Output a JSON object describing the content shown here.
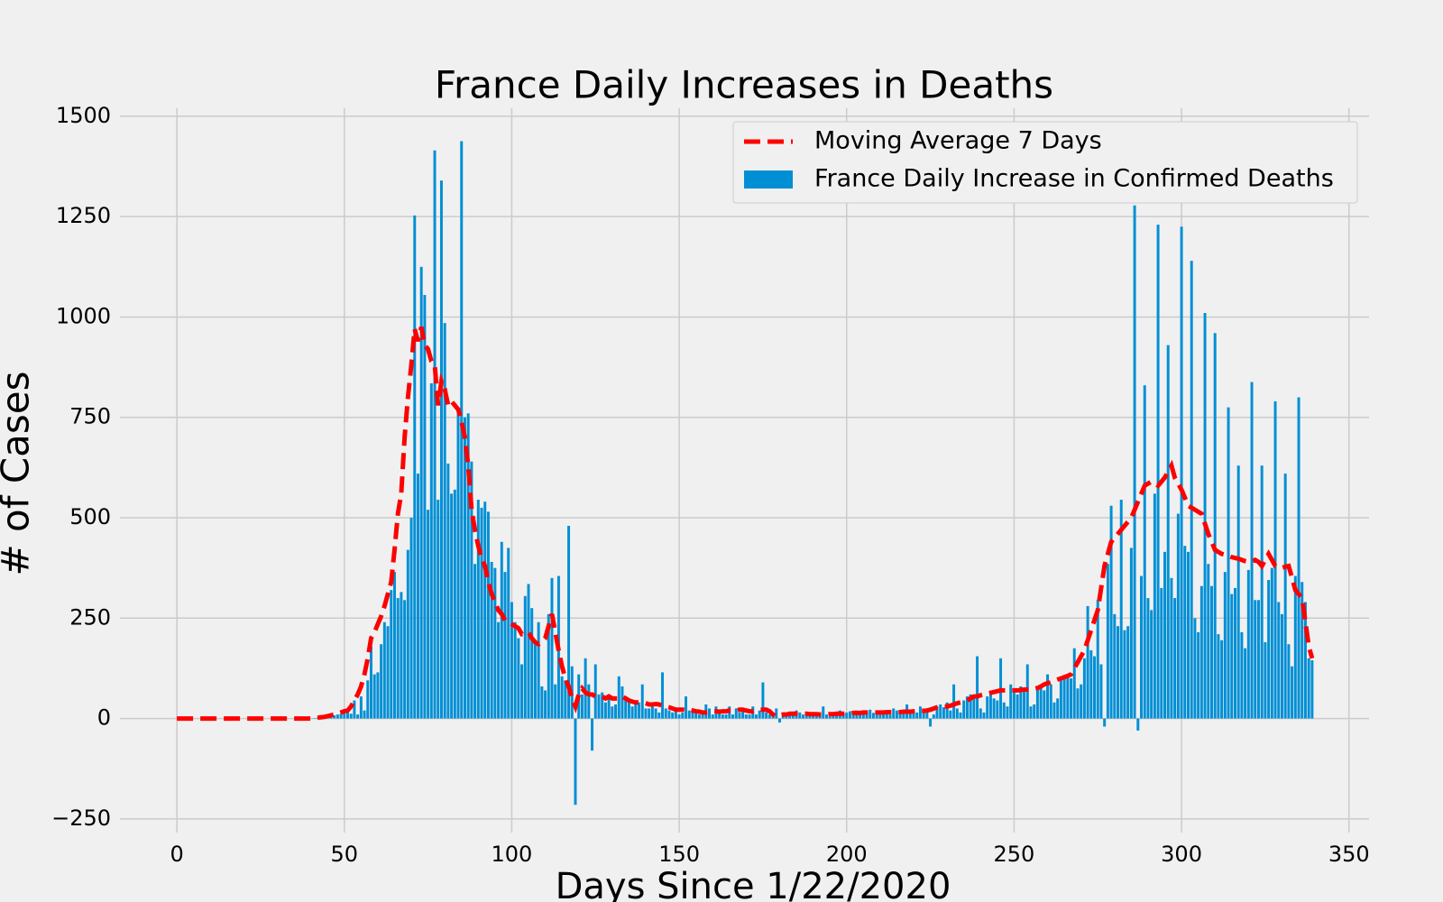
{
  "chart_data": {
    "type": "bar",
    "title": "France Daily Increases in Deaths",
    "x_label": "Days Since 1/22/2020",
    "y_label": "# of Cases",
    "legend": "upper right",
    "grid": true,
    "xlim": [
      -17,
      356
    ],
    "ylim": [
      -284,
      1520
    ],
    "xticks": [
      0,
      50,
      100,
      150,
      200,
      250,
      300,
      350
    ],
    "yticks": [
      {
        "value": -250,
        "label": "−250"
      },
      0,
      250,
      500,
      750,
      1000,
      1250,
      1500
    ],
    "x": [
      0,
      1,
      2,
      3,
      4,
      5,
      6,
      7,
      8,
      9,
      10,
      11,
      12,
      13,
      14,
      15,
      16,
      17,
      18,
      19,
      20,
      21,
      22,
      23,
      24,
      25,
      26,
      27,
      28,
      29,
      30,
      31,
      32,
      33,
      34,
      35,
      36,
      37,
      38,
      39,
      40,
      41,
      42,
      43,
      44,
      45,
      46,
      47,
      48,
      49,
      50,
      51,
      52,
      53,
      54,
      55,
      56,
      57,
      58,
      59,
      60,
      61,
      62,
      63,
      64,
      65,
      66,
      67,
      68,
      69,
      70,
      71,
      72,
      73,
      74,
      75,
      76,
      77,
      78,
      79,
      80,
      81,
      82,
      83,
      84,
      85,
      86,
      87,
      88,
      89,
      90,
      91,
      92,
      93,
      94,
      95,
      96,
      97,
      98,
      99,
      100,
      101,
      102,
      103,
      104,
      105,
      106,
      107,
      108,
      109,
      110,
      111,
      112,
      113,
      114,
      115,
      116,
      117,
      118,
      119,
      120,
      121,
      122,
      123,
      124,
      125,
      126,
      127,
      128,
      129,
      130,
      131,
      132,
      133,
      134,
      135,
      136,
      137,
      138,
      139,
      140,
      141,
      142,
      143,
      144,
      145,
      146,
      147,
      148,
      149,
      150,
      151,
      152,
      153,
      154,
      155,
      156,
      157,
      158,
      159,
      160,
      161,
      162,
      163,
      164,
      165,
      166,
      167,
      168,
      169,
      170,
      171,
      172,
      173,
      174,
      175,
      176,
      177,
      178,
      179,
      180,
      181,
      182,
      183,
      184,
      185,
      186,
      187,
      188,
      189,
      190,
      191,
      192,
      193,
      194,
      195,
      196,
      197,
      198,
      199,
      200,
      201,
      202,
      203,
      204,
      205,
      206,
      207,
      208,
      209,
      210,
      211,
      212,
      213,
      214,
      215,
      216,
      217,
      218,
      219,
      220,
      221,
      222,
      223,
      224,
      225,
      226,
      227,
      228,
      229,
      230,
      231,
      232,
      233,
      234,
      235,
      236,
      237,
      238,
      239,
      240,
      241,
      242,
      243,
      244,
      245,
      246,
      247,
      248,
      249,
      250,
      251,
      252,
      253,
      254,
      255,
      256,
      257,
      258,
      259,
      260,
      261,
      262,
      263,
      264,
      265,
      266,
      267,
      268,
      269,
      270,
      271,
      272,
      273,
      274,
      275,
      276,
      277,
      278,
      279,
      280,
      281,
      282,
      283,
      284,
      285,
      286,
      287,
      288,
      289,
      290,
      291,
      292,
      293,
      294,
      295,
      296,
      297,
      298,
      299,
      300,
      301,
      302,
      303,
      304,
      305,
      306,
      307,
      308,
      309,
      310,
      311,
      312,
      313,
      314,
      315,
      316,
      317,
      318,
      319,
      320,
      321,
      322,
      323,
      324,
      325,
      326,
      327,
      328,
      329,
      330,
      331,
      332,
      333,
      334,
      335,
      336,
      337,
      338,
      339
    ],
    "series": [
      {
        "name": "France Daily Increase in Confirmed Deaths",
        "type": "bar",
        "color": "#008fd5",
        "values": [
          0,
          0,
          0,
          0,
          0,
          0,
          0,
          0,
          0,
          0,
          0,
          0,
          0,
          0,
          0,
          0,
          0,
          0,
          0,
          0,
          0,
          0,
          0,
          0,
          0,
          0,
          0,
          0,
          0,
          0,
          0,
          0,
          0,
          0,
          0,
          0,
          0,
          0,
          0,
          0,
          0,
          1,
          2,
          3,
          5,
          4,
          6,
          8,
          10,
          12,
          15,
          20,
          12,
          45,
          10,
          55,
          20,
          95,
          180,
          110,
          115,
          185,
          240,
          230,
          320,
          365,
          300,
          315,
          295,
          420,
          500,
          1253,
          610,
          1125,
          1055,
          520,
          835,
          1415,
          545,
          1340,
          985,
          635,
          560,
          570,
          760,
          1438,
          750,
          760,
          640,
          385,
          545,
          525,
          540,
          515,
          390,
          375,
          240,
          440,
          365,
          425,
          290,
          240,
          200,
          135,
          305,
          335,
          275,
          190,
          240,
          80,
          70,
          260,
          350,
          85,
          355,
          105,
          95,
          480,
          130,
          -215,
          110,
          60,
          150,
          85,
          -80,
          135,
          60,
          65,
          40,
          60,
          30,
          35,
          105,
          80,
          45,
          45,
          30,
          40,
          40,
          85,
          25,
          25,
          30,
          25,
          15,
          115,
          25,
          20,
          15,
          20,
          10,
          15,
          55,
          20,
          20,
          15,
          10,
          10,
          35,
          25,
          10,
          30,
          15,
          10,
          10,
          30,
          10,
          25,
          15,
          20,
          10,
          10,
          30,
          10,
          20,
          90,
          15,
          10,
          5,
          25,
          -10,
          15,
          10,
          12,
          10,
          20,
          15,
          10,
          12,
          15,
          10,
          8,
          15,
          30,
          10,
          5,
          12,
          15,
          20,
          10,
          15,
          18,
          12,
          20,
          18,
          10,
          15,
          22,
          14,
          12,
          15,
          20,
          18,
          10,
          25,
          20,
          14,
          16,
          35,
          12,
          20,
          15,
          30,
          25,
          18,
          -20,
          10,
          30,
          35,
          28,
          40,
          20,
          85,
          25,
          15,
          45,
          55,
          60,
          50,
          155,
          25,
          15,
          55,
          60,
          50,
          45,
          150,
          40,
          30,
          85,
          70,
          60,
          80,
          75,
          135,
          30,
          35,
          75,
          80,
          70,
          110,
          85,
          40,
          50,
          100,
          105,
          110,
          100,
          175,
          75,
          85,
          150,
          280,
          170,
          155,
          295,
          135,
          -20,
          385,
          530,
          260,
          230,
          545,
          220,
          230,
          425,
          1278,
          -30,
          355,
          830,
          300,
          270,
          560,
          1230,
          325,
          415,
          930,
          350,
          300,
          510,
          1225,
          430,
          415,
          1140,
          250,
          215,
          330,
          1010,
          385,
          330,
          960,
          210,
          195,
          365,
          775,
          310,
          325,
          630,
          215,
          175,
          370,
          838,
          295,
          295,
          630,
          190,
          345,
          375,
          790,
          290,
          260,
          610,
          185,
          130,
          355,
          800,
          340,
          290,
          150,
          145
        ]
      },
      {
        "name": "Moving Average 7 Days",
        "type": "line",
        "color": "#ff0000",
        "dashed": true,
        "values": [
          0,
          0,
          0,
          0,
          0,
          0,
          0,
          0,
          0,
          0,
          0,
          0,
          0,
          0,
          0,
          0,
          0,
          0,
          0,
          0,
          0,
          0,
          0,
          0,
          0,
          0,
          0,
          0,
          0,
          0,
          0,
          0,
          0,
          0,
          0,
          0,
          0,
          0,
          0,
          0,
          0,
          1,
          2,
          3,
          4,
          6,
          8,
          10,
          12,
          15,
          18,
          20,
          30,
          45,
          60,
          80,
          110,
          150,
          200,
          215,
          235,
          255,
          280,
          310,
          340,
          420,
          510,
          560,
          700,
          800,
          880,
          970,
          940,
          975,
          930,
          920,
          890,
          880,
          780,
          840,
          820,
          780,
          790,
          780,
          770,
          740,
          700,
          630,
          520,
          470,
          430,
          400,
          380,
          340,
          310,
          290,
          270,
          260,
          245,
          240,
          235,
          230,
          225,
          210,
          210,
          215,
          200,
          190,
          185,
          190,
          200,
          230,
          260,
          215,
          170,
          130,
          100,
          80,
          50,
          30,
          60,
          75,
          65,
          60,
          60,
          55,
          55,
          55,
          50,
          55,
          50,
          50,
          50,
          55,
          50,
          45,
          42,
          40,
          40,
          40,
          38,
          35,
          35,
          36,
          35,
          32,
          30,
          28,
          25,
          22,
          22,
          22,
          21,
          22,
          20,
          18,
          17,
          15,
          15,
          16,
          18,
          18,
          17,
          18,
          18,
          20,
          20,
          20,
          22,
          22,
          20,
          18,
          18,
          20,
          22,
          22,
          22,
          18,
          10,
          5,
          8,
          10,
          10,
          12,
          12,
          12,
          12,
          12,
          12,
          11,
          11,
          11,
          10,
          10,
          10,
          11,
          11,
          12,
          12,
          12,
          13,
          13,
          14,
          14,
          14,
          15,
          15,
          15,
          15,
          15,
          15,
          15,
          16,
          16,
          16,
          16,
          16,
          17,
          17,
          17,
          18,
          18,
          19,
          19,
          20,
          22,
          25,
          28,
          30,
          30,
          30,
          32,
          35,
          38,
          40,
          42,
          45,
          50,
          55,
          55,
          58,
          60,
          62,
          64,
          66,
          68,
          70,
          70,
          70,
          70,
          70,
          70,
          71,
          72,
          72,
          72,
          74,
          76,
          80,
          85,
          88,
          90,
          94,
          97,
          100,
          103,
          106,
          110,
          125,
          140,
          155,
          170,
          195,
          220,
          245,
          270,
          325,
          380,
          410,
          440,
          450,
          460,
          470,
          480,
          490,
          500,
          520,
          540,
          560,
          580,
          585,
          590,
          585,
          580,
          590,
          600,
          615,
          630,
          600,
          585,
          570,
          550,
          530,
          525,
          520,
          515,
          510,
          485,
          460,
          440,
          420,
          415,
          410,
          408,
          405,
          402,
          400,
          398,
          395,
          392,
          390,
          392,
          395,
          390,
          380,
          395,
          410,
          395,
          380,
          378,
          375,
          378,
          380,
          350,
          320,
          310,
          300,
          240,
          180,
          150
        ]
      }
    ]
  }
}
